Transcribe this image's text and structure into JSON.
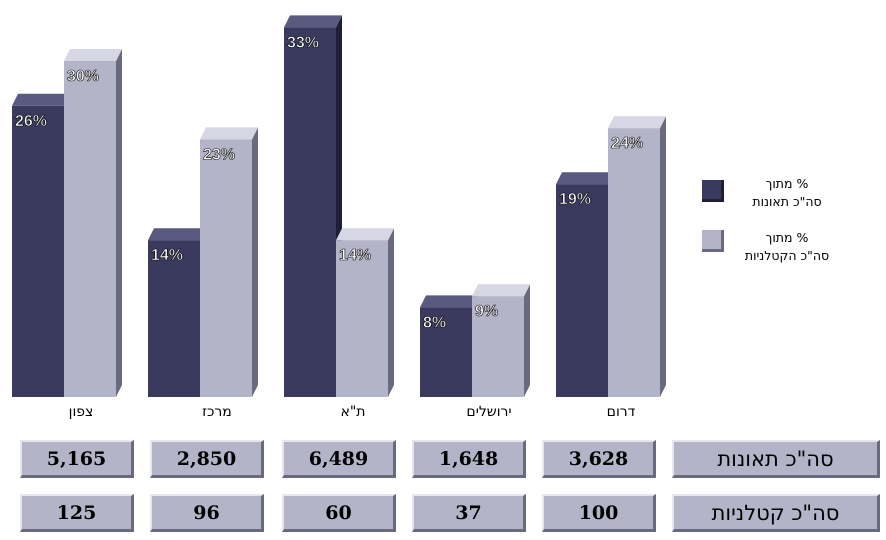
{
  "chart_data": {
    "type": "bar",
    "categories": [
      "צפון",
      "מרכז",
      "ת\"א",
      "ירושלים",
      "דרום"
    ],
    "series": [
      {
        "name": "% מתוך סה\"כ תאונות",
        "values": [
          26,
          14,
          33,
          8,
          19
        ],
        "labels": [
          "26%",
          "14%",
          "33%",
          "8%",
          "19%"
        ],
        "color": "#3a3a5e"
      },
      {
        "name": "% מתוך סה\"כ הקטלניות",
        "values": [
          30,
          23,
          14,
          9,
          24
        ],
        "labels": [
          "30%",
          "23%",
          "14%",
          "9%",
          "24%"
        ],
        "color": "#b4b4c8"
      }
    ],
    "ylim": [
      0,
      36
    ],
    "grid": false,
    "legend": "right"
  },
  "table": {
    "rows": [
      {
        "label": "סה\"כ תאונות",
        "values": [
          "5,165",
          "2,850",
          "6,489",
          "1,648",
          "3,628"
        ]
      },
      {
        "label": "סה\"כ קטלניות",
        "values": [
          "125",
          "96",
          "60",
          "37",
          "100"
        ]
      }
    ]
  },
  "legend": [
    {
      "line1": "% מתוך",
      "line2": "סה\"כ תאונות"
    },
    {
      "line1": "% מתוך",
      "line2": "סה\"כ הקטלניות"
    }
  ]
}
